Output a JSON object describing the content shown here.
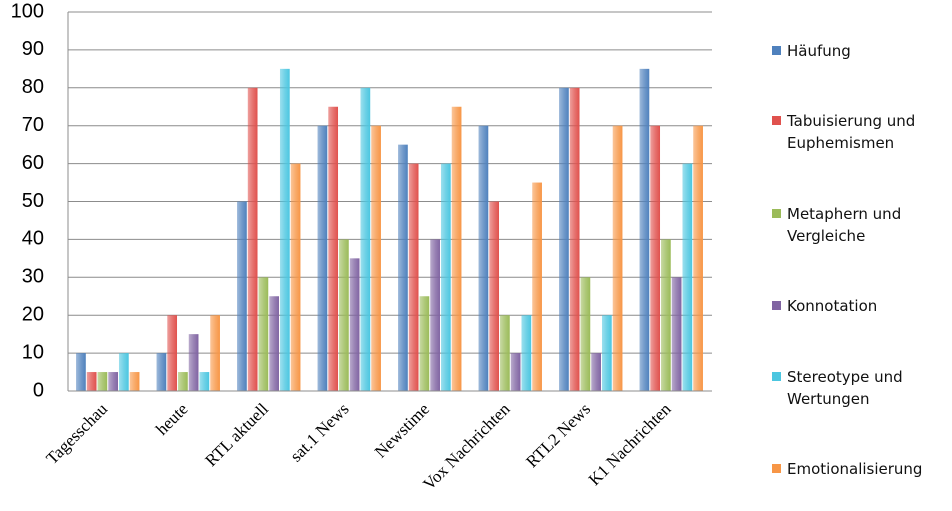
{
  "chart_data": {
    "type": "bar",
    "categories": [
      "Tagesschau",
      "heute",
      "RTL aktuell",
      "sat.1 News",
      "Newstime",
      "Vox Nachrichten",
      "RTL2 News",
      "K1 Nachrichten"
    ],
    "series": [
      {
        "name": "Häufung",
        "color": "#4f81bd",
        "values": [
          10,
          10,
          50,
          70,
          65,
          70,
          80,
          85
        ]
      },
      {
        "name": "Tabuisierung und Euphemismen",
        "color": "#e0514d",
        "values": [
          5,
          20,
          80,
          75,
          60,
          50,
          80,
          70
        ]
      },
      {
        "name": "Metaphern und Vergleiche",
        "color": "#9bbb59",
        "values": [
          5,
          5,
          30,
          40,
          25,
          20,
          30,
          40
        ]
      },
      {
        "name": "Konnotation",
        "color": "#8064a2",
        "values": [
          5,
          15,
          25,
          35,
          40,
          10,
          10,
          30
        ]
      },
      {
        "name": "Stereotype und Wertungen",
        "color": "#4bc6e0",
        "values": [
          10,
          5,
          85,
          80,
          60,
          20,
          20,
          60
        ]
      },
      {
        "name": "Emotionalisierung",
        "color": "#f79646",
        "values": [
          5,
          20,
          60,
          70,
          75,
          55,
          70,
          70
        ]
      }
    ],
    "ylim": [
      0,
      100
    ],
    "yticks": [
      0,
      10,
      20,
      30,
      40,
      50,
      60,
      70,
      80,
      90,
      100
    ],
    "grid": true,
    "legend": "right"
  }
}
